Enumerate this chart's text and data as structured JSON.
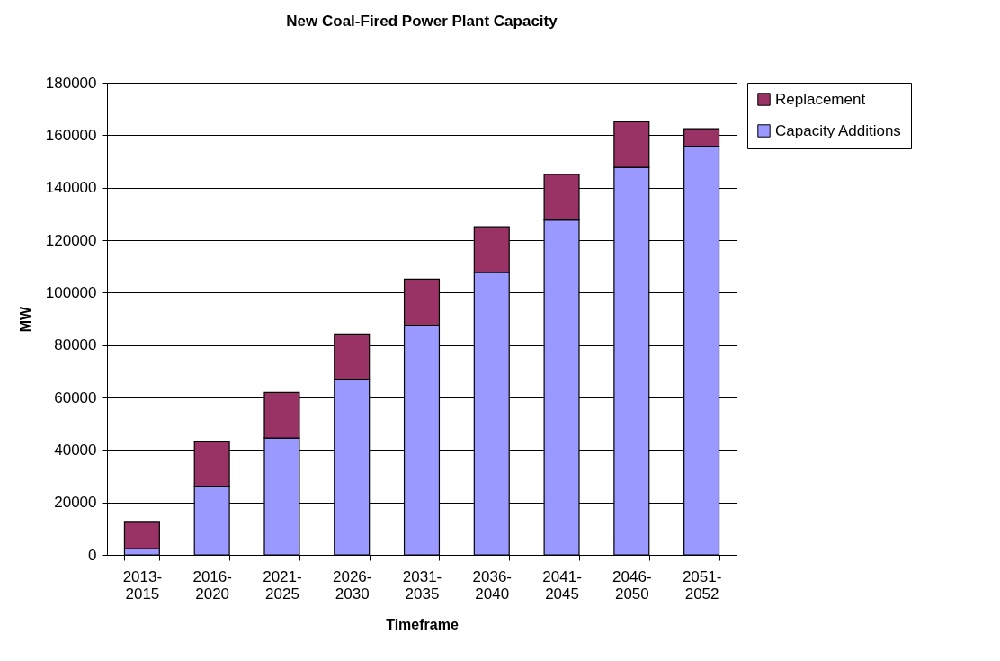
{
  "chart_data": {
    "type": "bar",
    "title": "New Coal-Fired Power Plant Capacity",
    "xlabel": "Timeframe",
    "ylabel": "MW",
    "categories": [
      "2013-2015",
      "2016-2020",
      "2021-2025",
      "2026-2030",
      "2031-2035",
      "2036-2040",
      "2041-2045",
      "2046-2050",
      "2051-2052"
    ],
    "series": [
      {
        "name": "Capacity Additions",
        "color": "#9999ff",
        "values": [
          2400,
          26200,
          44500,
          67000,
          87600,
          107700,
          127700,
          147700,
          155800
        ]
      },
      {
        "name": "Replacement",
        "color": "#993366",
        "values": [
          10300,
          17100,
          17400,
          17200,
          17500,
          17400,
          17400,
          17400,
          6700
        ]
      }
    ],
    "stacked": true,
    "ylim": [
      0,
      180000
    ],
    "yticks": [
      0,
      20000,
      40000,
      60000,
      80000,
      100000,
      120000,
      140000,
      160000,
      180000
    ],
    "grid": "y",
    "legend": "right"
  }
}
